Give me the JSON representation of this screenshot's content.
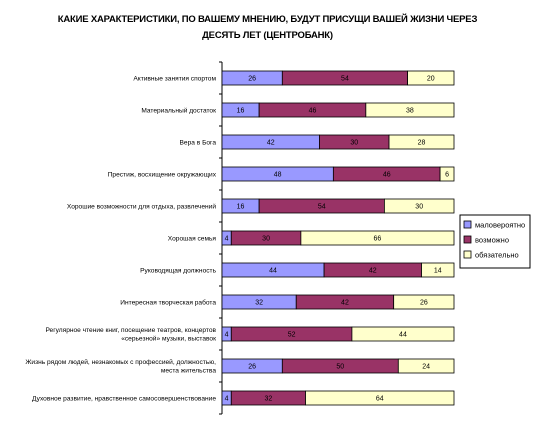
{
  "chart_data": {
    "type": "bar",
    "stacked": true,
    "orientation": "horizontal",
    "percent_scale": true,
    "title_lines": [
      "КАКИЕ ХАРАКТЕРИСТИКИ, ПО ВАШЕМУ МНЕНИЮ, БУДУТ ПРИСУЩИ ВАШЕЙ ЖИЗНИ ЧЕРЕЗ",
      "ДЕСЯТЬ ЛЕТ (ЦЕНТРОБАНК)"
    ],
    "categories": [
      [
        "Активные занятия спортом"
      ],
      [
        "Материальный достаток"
      ],
      [
        "Вера в Бога"
      ],
      [
        "Престиж, восхищение окружающих"
      ],
      [
        "Хорошие возможности для отдыха, развлечений"
      ],
      [
        "Хорошая семья"
      ],
      [
        "Руководящая должность"
      ],
      [
        "Интересная творческая работа"
      ],
      [
        "Регулярное чтение книг, посещение театров, концертов",
        "«серьезной» музыки, выставок"
      ],
      [
        "Жизнь рядом людей, незнакомых с профессией, должностью,",
        "места жительства"
      ],
      [
        "Духовное развитие, нравственное самосовершенствование"
      ]
    ],
    "series": [
      {
        "name": "маловероятно",
        "color": "#9999ff",
        "values": [
          26,
          16,
          42,
          48,
          16,
          4,
          44,
          32,
          4,
          26,
          4
        ]
      },
      {
        "name": "возможно",
        "color": "#993366",
        "values": [
          54,
          46,
          30,
          46,
          54,
          30,
          42,
          42,
          52,
          50,
          32
        ]
      },
      {
        "name": "обязательно",
        "color": "#ffffcc",
        "values": [
          20,
          38,
          28,
          6,
          30,
          66,
          14,
          26,
          44,
          24,
          64
        ]
      }
    ],
    "legend_position": "right",
    "grid": false
  }
}
